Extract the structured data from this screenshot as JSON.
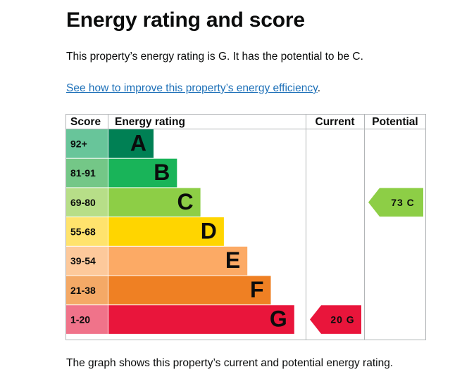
{
  "page": {
    "title": "Energy rating and score",
    "intro": "This property’s energy rating is G. It has the potential to be C.",
    "link_text": "See how to improve this property’s energy efficiency",
    "link_suffix": ".",
    "footer": "The graph shows this property’s current and potential energy rating."
  },
  "chart_data": {
    "type": "bar",
    "headers": {
      "score": "Score",
      "rating": "Energy rating",
      "current": "Current",
      "potential": "Potential"
    },
    "bands": [
      {
        "score": "92+",
        "letter": "A",
        "color": "#008054",
        "score_bg": "#68c59a"
      },
      {
        "score": "81-91",
        "letter": "B",
        "color": "#19b459",
        "score_bg": "#74c787"
      },
      {
        "score": "69-80",
        "letter": "C",
        "color": "#8dce46",
        "score_bg": "#b7de88"
      },
      {
        "score": "55-68",
        "letter": "D",
        "color": "#ffd500",
        "score_bg": "#ffe36d"
      },
      {
        "score": "39-54",
        "letter": "E",
        "color": "#fcaa65",
        "score_bg": "#fdc99b"
      },
      {
        "score": "21-38",
        "letter": "F",
        "color": "#ef8023",
        "score_bg": "#f4a966"
      },
      {
        "score": "1-20",
        "letter": "G",
        "color": "#e9153b",
        "score_bg": "#f0738a"
      }
    ],
    "current": {
      "value": 20,
      "letter": "G",
      "label": "20 G"
    },
    "potential": {
      "value": 73,
      "letter": "C",
      "label": "73 C"
    }
  }
}
